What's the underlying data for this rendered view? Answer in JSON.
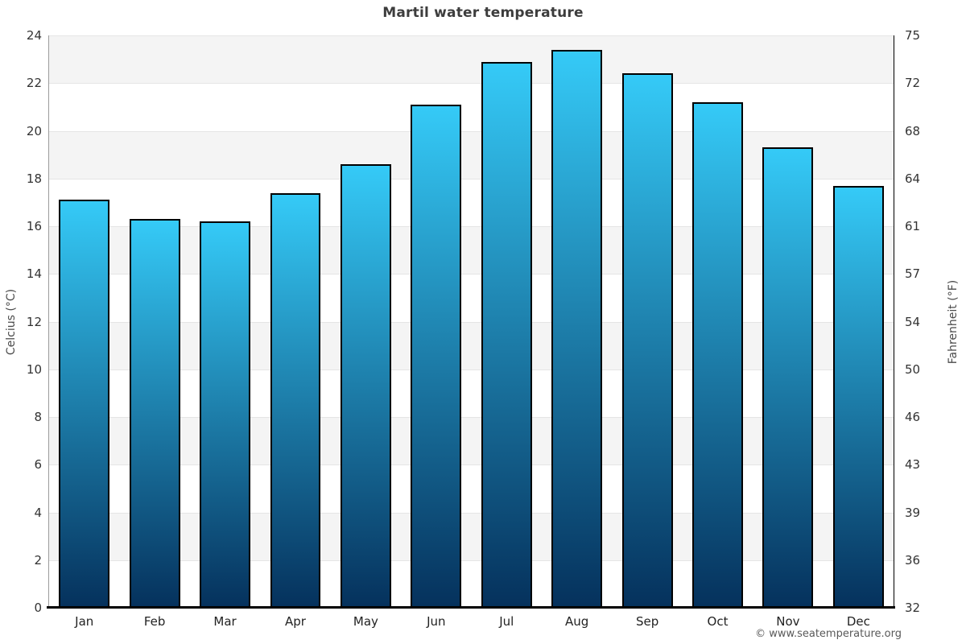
{
  "chart_data": {
    "type": "bar",
    "title": "Martil water temperature",
    "categories": [
      "Jan",
      "Feb",
      "Mar",
      "Apr",
      "May",
      "Jun",
      "Jul",
      "Aug",
      "Sep",
      "Oct",
      "Nov",
      "Dec"
    ],
    "values": [
      17.1,
      16.3,
      16.2,
      17.4,
      18.6,
      21.1,
      22.9,
      23.4,
      22.4,
      21.2,
      19.3,
      17.7
    ],
    "ylabel_left": "Celcius (°C)",
    "ylabel_right": "Fahrenheit (°F)",
    "ylim": [
      0,
      24
    ],
    "yticks_left": [
      24,
      22,
      20,
      18,
      16,
      14,
      12,
      10,
      8,
      6,
      4,
      2,
      0
    ],
    "yticks_right": [
      75,
      72,
      68,
      64,
      61,
      57,
      54,
      50,
      46,
      43,
      39,
      36,
      32
    ],
    "legend": "none",
    "grid": "alternating-horizontal-bands",
    "colors": {
      "bar_gradient_top": "#35caf7",
      "bar_gradient_bottom": "#05315c",
      "bar_border": "#000000",
      "band_gray": "#f4f4f4",
      "band_white": "#ffffff",
      "gridline": "#e5e5e5",
      "title_text": "#3d3d3d"
    }
  },
  "watermark": {
    "text": "© www.seatemperature.org"
  }
}
